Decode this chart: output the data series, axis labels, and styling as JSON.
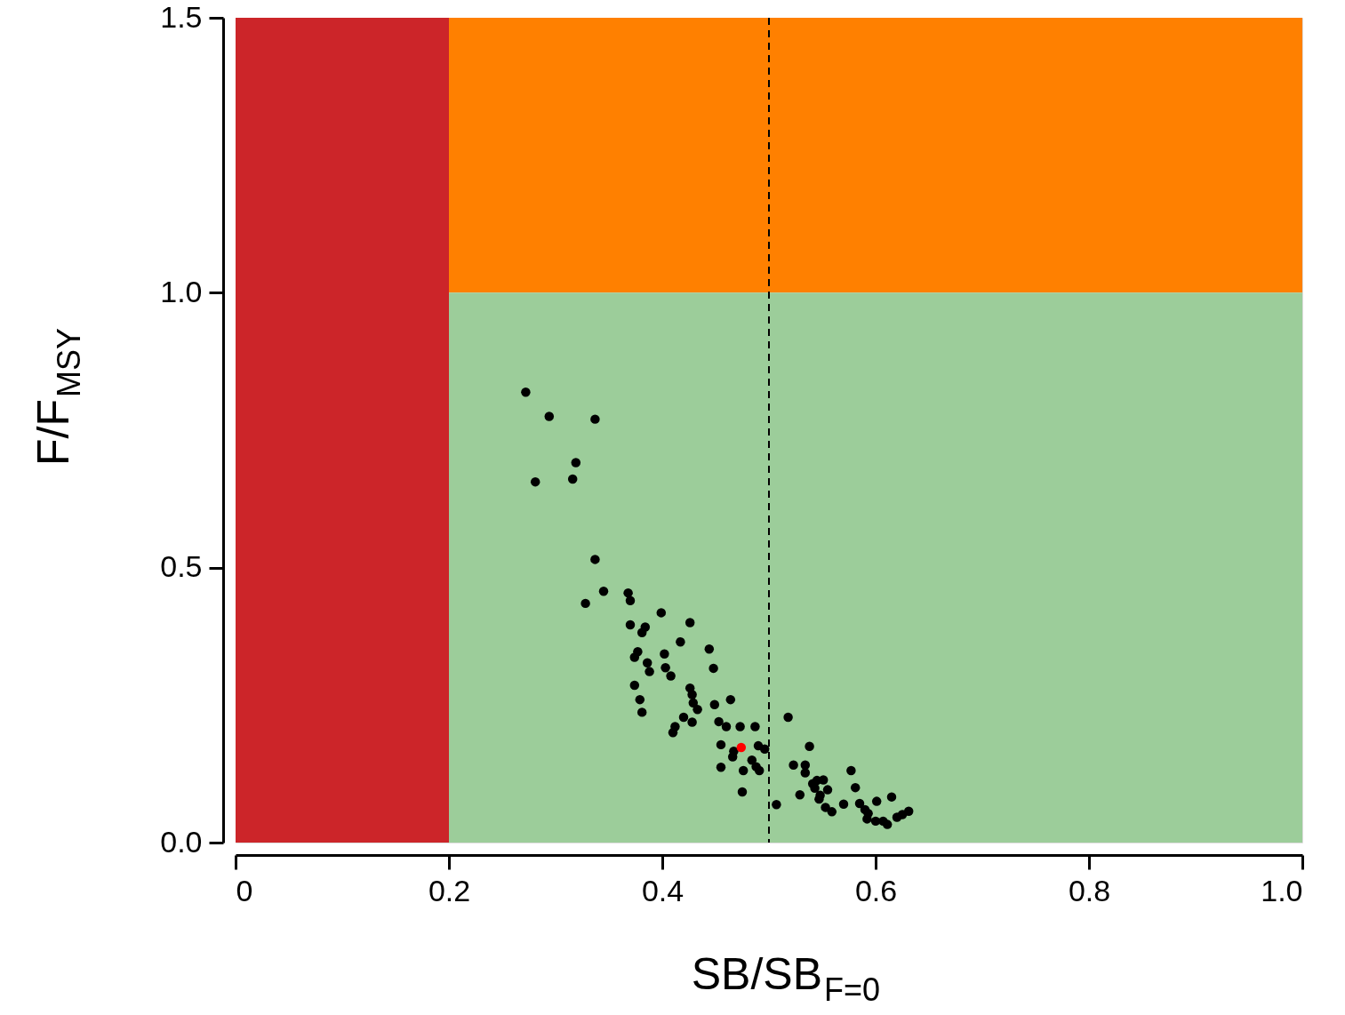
{
  "chart_data": {
    "type": "scatter",
    "xlabel": "SB/SB$_{F=0}$",
    "ylabel": "F/F$_{MSY}$",
    "xlim": [
      0,
      1
    ],
    "ylim": [
      0,
      1.5
    ],
    "xticks": [
      {
        "value": 0,
        "label": "0"
      },
      0.2,
      0.4,
      0.6,
      0.8,
      {
        "value": 1,
        "label": "1.0"
      }
    ],
    "yticks": [
      {
        "value": 0,
        "label": "0.0"
      },
      0.5,
      {
        "value": 1,
        "label": "1.0"
      },
      1.5
    ],
    "grid": false,
    "marker": "circle",
    "bands": [
      {
        "axis": "y",
        "from": 1.0,
        "to": 1.5,
        "color": "#ff8000"
      },
      {
        "axis": "y",
        "from": 0,
        "to": 1.0,
        "color": "#9ccd9a"
      },
      {
        "axis": "x",
        "from": 0,
        "to": 0.2,
        "color": "#cc2529"
      }
    ],
    "ref_lines": [
      {
        "axis": "x",
        "value": 0.5,
        "color": "#000000",
        "line_style": "dashed"
      }
    ],
    "series": [
      {
        "color": "#000000",
        "x": [
          0.272,
          0.294,
          0.337,
          0.319,
          0.316,
          0.281,
          0.337,
          0.345,
          0.328,
          0.368,
          0.37,
          0.399,
          0.426,
          0.37,
          0.384,
          0.381,
          0.417,
          0.444,
          0.377,
          0.374,
          0.402,
          0.386,
          0.388,
          0.403,
          0.408,
          0.448,
          0.374,
          0.426,
          0.428,
          0.379,
          0.429,
          0.433,
          0.381,
          0.449,
          0.464,
          0.42,
          0.428,
          0.412,
          0.41,
          0.453,
          0.46,
          0.473,
          0.487,
          0.455,
          0.467,
          0.466,
          0.49,
          0.496,
          0.484,
          0.488,
          0.491,
          0.476,
          0.455,
          0.475,
          0.507,
          0.518,
          0.538,
          0.523,
          0.534,
          0.534,
          0.541,
          0.545,
          0.551,
          0.543,
          0.555,
          0.548,
          0.547,
          0.529,
          0.553,
          0.559,
          0.577,
          0.581,
          0.57,
          0.585,
          0.59,
          0.593,
          0.592,
          0.6,
          0.607,
          0.611,
          0.601,
          0.615,
          0.62,
          0.625,
          0.631
        ],
        "values": [
          0.819,
          0.775,
          0.77,
          0.691,
          0.661,
          0.656,
          0.515,
          0.457,
          0.435,
          0.454,
          0.44,
          0.418,
          0.4,
          0.396,
          0.392,
          0.382,
          0.365,
          0.352,
          0.347,
          0.337,
          0.343,
          0.327,
          0.311,
          0.318,
          0.303,
          0.317,
          0.286,
          0.281,
          0.269,
          0.26,
          0.254,
          0.242,
          0.237,
          0.251,
          0.26,
          0.228,
          0.219,
          0.211,
          0.2,
          0.22,
          0.211,
          0.211,
          0.211,
          0.178,
          0.166,
          0.156,
          0.176,
          0.17,
          0.15,
          0.138,
          0.131,
          0.131,
          0.137,
          0.092,
          0.069,
          0.228,
          0.175,
          0.141,
          0.141,
          0.127,
          0.107,
          0.113,
          0.114,
          0.099,
          0.096,
          0.086,
          0.079,
          0.087,
          0.064,
          0.056,
          0.131,
          0.1,
          0.07,
          0.071,
          0.06,
          0.053,
          0.043,
          0.039,
          0.039,
          0.033,
          0.075,
          0.083,
          0.046,
          0.051,
          0.057
        ]
      },
      {
        "color": "#ff0000",
        "x": [
          0.474
        ],
        "values": [
          0.173
        ]
      }
    ]
  }
}
